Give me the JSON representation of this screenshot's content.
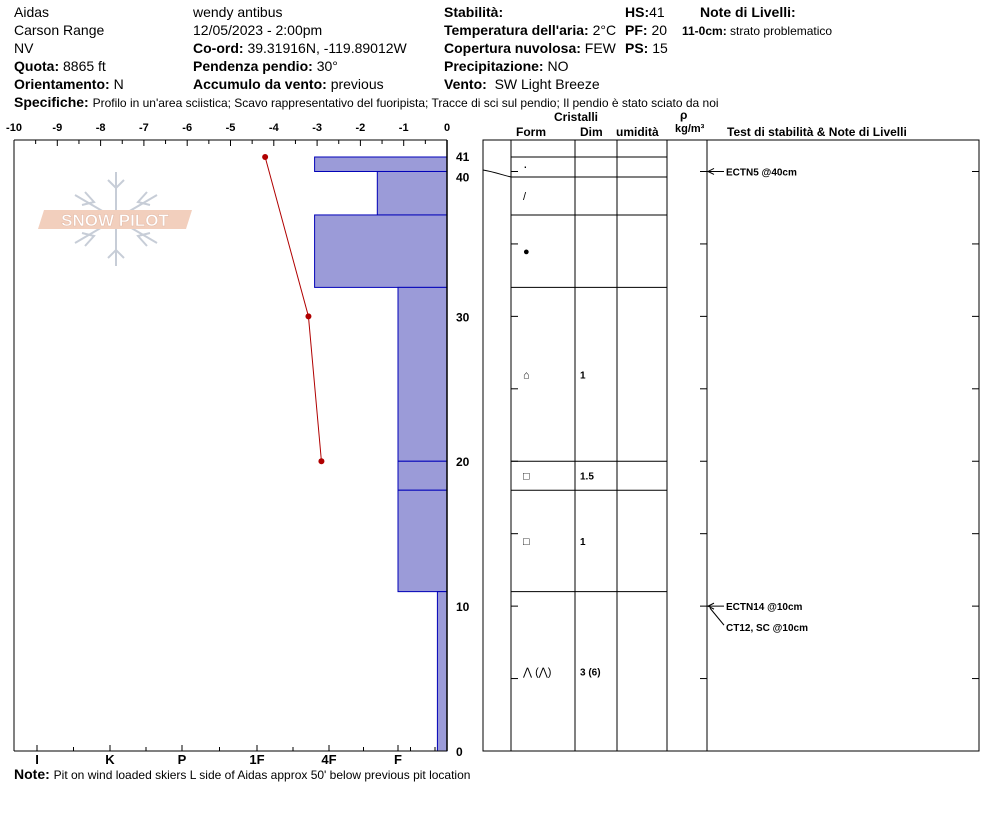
{
  "header": {
    "location": "Aidas",
    "range": "Carson Range",
    "state": "NV",
    "elevation_label": "Quota:",
    "elevation_value": "8865 ft",
    "aspect_label": "Orientamento:",
    "aspect_value": "N",
    "observer": "wendy antibus",
    "datetime": "12/05/2023 - 2:00pm",
    "coord_label": "Co-ord:",
    "coord_value": "39.31916N, -119.89012W",
    "slope_label": "Pendenza pendio:",
    "slope_value": "30°",
    "wind_load_label": "Accumulo da vento:",
    "wind_load_value": "previous",
    "stability_label": "Stabilità:",
    "air_temp_label": "Temperatura dell'aria:",
    "air_temp_value": "2°C",
    "sky_label": "Copertura nuvolosa:",
    "sky_value": "FEW",
    "precip_label": "Precipitazione:",
    "precip_value": "NO",
    "wind_label": "Vento:",
    "wind_value": "SW Light Breeze",
    "hs_label": "HS:",
    "hs_value": "41",
    "pf_label": "PF:",
    "pf_value": "20",
    "ps_label": "PS:",
    "ps_value": "15",
    "layer_notes_label": "Note di Livelli:",
    "layer_note_range": "11-0cm:",
    "layer_note_text": "strato problematico",
    "specifics_label": "Specifiche:",
    "specifics_value": "Profilo in un'area sciistica; Scavo rappresentativo del fuoripista; Tracce di sci sul pendio; Il pendio è stato sciato da noi",
    "note_label": "Note:",
    "note_value": "Pit on wind loaded skiers L side of Aidas approx 50' below previous pit location"
  },
  "watermark": "SNOW PILOT",
  "table_headers": {
    "crystals": "Cristalli",
    "form": "Form",
    "size": "Dim",
    "moisture": "umidità",
    "rho": "ρ",
    "density_unit": "kg/m³",
    "stability_notes": "Test di stabilità & Note di Livelli"
  },
  "colors": {
    "hardness_fill": "#9b9bd8",
    "hardness_stroke": "#0000b8",
    "temp_line": "#b00000"
  },
  "chart_data": {
    "type": "snow_profile",
    "temp_axis": {
      "ticks": [
        -10,
        -9,
        -8,
        -7,
        -6,
        -5,
        -4,
        -3,
        -2,
        -1,
        0
      ],
      "min": -10,
      "max": 0
    },
    "height_axis": {
      "ticks": [
        0,
        10,
        20,
        30,
        40,
        41
      ],
      "min": 0,
      "max": 41
    },
    "hardness_axis": {
      "labels": [
        "I",
        "K",
        "P",
        "1F",
        "4F",
        "F"
      ]
    },
    "hardness_layers": [
      {
        "top": 41,
        "bottom": 40,
        "hardness": "1F+"
      },
      {
        "top": 40,
        "bottom": 37,
        "hardness": "4F+"
      },
      {
        "top": 37,
        "bottom": 32,
        "hardness": "1F+"
      },
      {
        "top": 32,
        "bottom": 20,
        "hardness": "4F"
      },
      {
        "top": 20,
        "bottom": 18,
        "hardness": "4F"
      },
      {
        "top": 18,
        "bottom": 11,
        "hardness": "4F"
      },
      {
        "top": 11,
        "bottom": 0,
        "hardness": "F-"
      }
    ],
    "hardness_index": {
      "F-": 0.4,
      "4F": 2.0,
      "4F+": 2.3,
      "1F+": 3.2
    },
    "temperature_profile": [
      {
        "height": 41,
        "temp": -4.2
      },
      {
        "height": 30,
        "temp": -3.2
      },
      {
        "height": 20,
        "temp": -2.9
      }
    ],
    "layers": [
      {
        "top": 41,
        "bottom": 40,
        "form": "·",
        "size": ""
      },
      {
        "top": 40,
        "bottom": 37,
        "form": "/",
        "size": ""
      },
      {
        "top": 37,
        "bottom": 32,
        "form": "●",
        "size": ""
      },
      {
        "top": 32,
        "bottom": 20,
        "form": "⌂",
        "size": "1"
      },
      {
        "top": 20,
        "bottom": 18,
        "form": "□",
        "size": "1.5"
      },
      {
        "top": 18,
        "bottom": 11,
        "form": "□",
        "size": "1"
      },
      {
        "top": 11,
        "bottom": 0,
        "form": "⋀ (⋀)",
        "size": "3 (6)"
      }
    ],
    "stability_tests": [
      {
        "height": 40,
        "label": "ECTN5 @40cm"
      },
      {
        "height": 10,
        "label": "ECTN14 @10cm"
      },
      {
        "height": 10,
        "label": "CT12, SC @10cm"
      }
    ]
  }
}
